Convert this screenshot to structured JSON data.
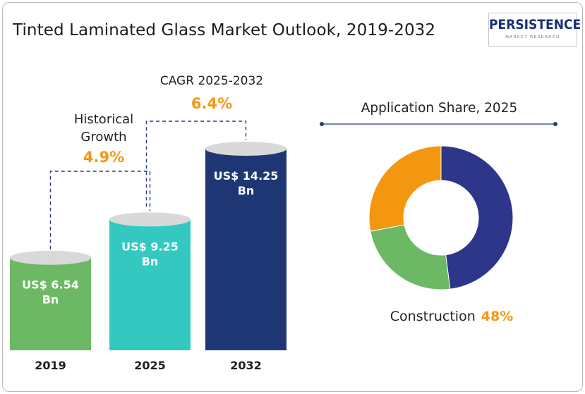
{
  "title": "Tinted Laminated Glass Market Outlook, 2019-2032",
  "logo": {
    "name": "PERSISTENCE",
    "tagline": "MARKET RESEARCH"
  },
  "historical": {
    "label_line1": "Historical",
    "label_line2": "Growth",
    "value": "4.9%"
  },
  "cagr": {
    "label": "CAGR 2025-2032",
    "value": "6.4%"
  },
  "chart_data": [
    {
      "type": "bar",
      "categories": [
        "2019",
        "2025",
        "2032"
      ],
      "values": [
        6.54,
        9.25,
        14.25
      ],
      "unit": "US$ Bn",
      "value_labels": [
        [
          "US$ 6.54",
          "Bn"
        ],
        [
          "US$ 9.25",
          "Bn"
        ],
        [
          "US$ 14.25",
          "Bn"
        ]
      ],
      "colors": [
        "#6db864",
        "#33c9c1",
        "#1e3774"
      ],
      "ylim": [
        0,
        14.25
      ],
      "grid": false
    },
    {
      "type": "pie",
      "title": "Application Share, 2025",
      "slices": [
        {
          "name": "Construction",
          "value": 48,
          "color": "#2d3689"
        },
        {
          "name": "",
          "value": 24,
          "color": "#6db864"
        },
        {
          "name": "",
          "value": 28,
          "color": "#f49710"
        }
      ],
      "highlight": {
        "name": "Construction",
        "value_label": "48%"
      }
    }
  ]
}
